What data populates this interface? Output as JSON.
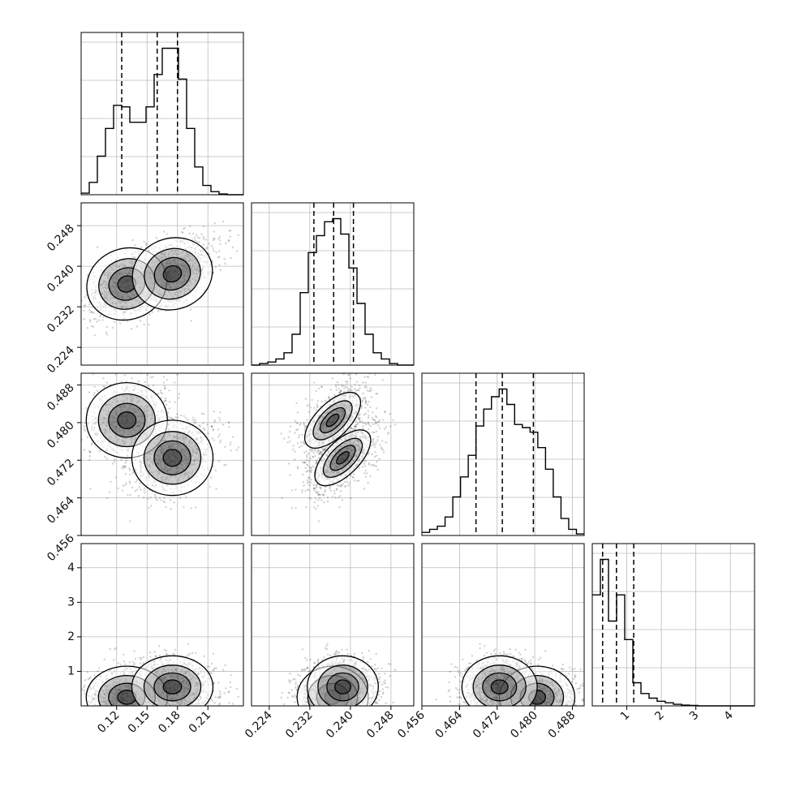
{
  "chart_data": {
    "type": "corner",
    "grid": true,
    "parameters": [
      {
        "index": 0,
        "range": [
          0.085,
          0.245
        ],
        "ticks": [
          0.12,
          0.15,
          0.18,
          0.21
        ],
        "tick_labels": [
          "0.12",
          "0.15",
          "0.18",
          "0.21"
        ],
        "quantiles": [
          0.125,
          0.16,
          0.18
        ]
      },
      {
        "index": 1,
        "range": [
          0.2205,
          0.2525
        ],
        "ticks": [
          0.224,
          0.232,
          0.24,
          0.248
        ],
        "tick_labels": [
          "0.224",
          "0.232",
          "0.240",
          "0.248"
        ],
        "quantiles": [
          0.2328,
          0.2367,
          0.2406
        ]
      },
      {
        "index": 2,
        "range": [
          0.456,
          0.4905
        ],
        "ticks": [
          0.456,
          0.464,
          0.472,
          0.48,
          0.488
        ],
        "tick_labels": [
          "0.456",
          "0.464",
          "0.472",
          "0.480",
          "0.488"
        ],
        "quantiles": [
          0.4675,
          0.4731,
          0.4797
        ]
      },
      {
        "index": 3,
        "range": [
          0.0,
          4.7
        ],
        "ticks": [
          1,
          2,
          3,
          4
        ],
        "tick_labels": [
          "1",
          "2",
          "3",
          "4"
        ],
        "quantiles": [
          0.3,
          0.7,
          1.2
        ]
      }
    ],
    "histograms": [
      {
        "param": 0,
        "values": [
          0.01,
          0.08,
          0.25,
          0.43,
          0.58,
          0.57,
          0.47,
          0.47,
          0.57,
          0.78,
          0.95,
          0.95,
          0.75,
          0.43,
          0.18,
          0.06,
          0.02,
          0.005,
          0.0,
          0.0
        ]
      },
      {
        "param": 1,
        "values": [
          0.0,
          0.01,
          0.02,
          0.04,
          0.08,
          0.2,
          0.47,
          0.73,
          0.84,
          0.93,
          0.95,
          0.85,
          0.63,
          0.4,
          0.2,
          0.08,
          0.04,
          0.01,
          0.0,
          0.0
        ]
      },
      {
        "param": 2,
        "values": [
          0.02,
          0.04,
          0.06,
          0.12,
          0.25,
          0.38,
          0.52,
          0.71,
          0.82,
          0.9,
          0.95,
          0.85,
          0.72,
          0.7,
          0.67,
          0.57,
          0.43,
          0.25,
          0.11,
          0.04,
          0.01
        ]
      },
      {
        "param": 3,
        "values": [
          0.72,
          0.95,
          0.55,
          0.72,
          0.43,
          0.15,
          0.08,
          0.05,
          0.03,
          0.02,
          0.01,
          0.005,
          0.003,
          0.0,
          0.0,
          0.0,
          0.0,
          0.0,
          0.0,
          0.0
        ]
      }
    ],
    "joint_modes": [
      {
        "p1": 0.13,
        "p2": 0.2365,
        "p3": 0.4805,
        "p4": 0.25,
        "weight": 0.45
      },
      {
        "p1": 0.175,
        "p2": 0.2385,
        "p3": 0.4725,
        "p4": 0.55,
        "weight": 0.55
      }
    ],
    "mode_spread": [
      0.02,
      0.0035,
      0.004,
      0.45
    ]
  }
}
